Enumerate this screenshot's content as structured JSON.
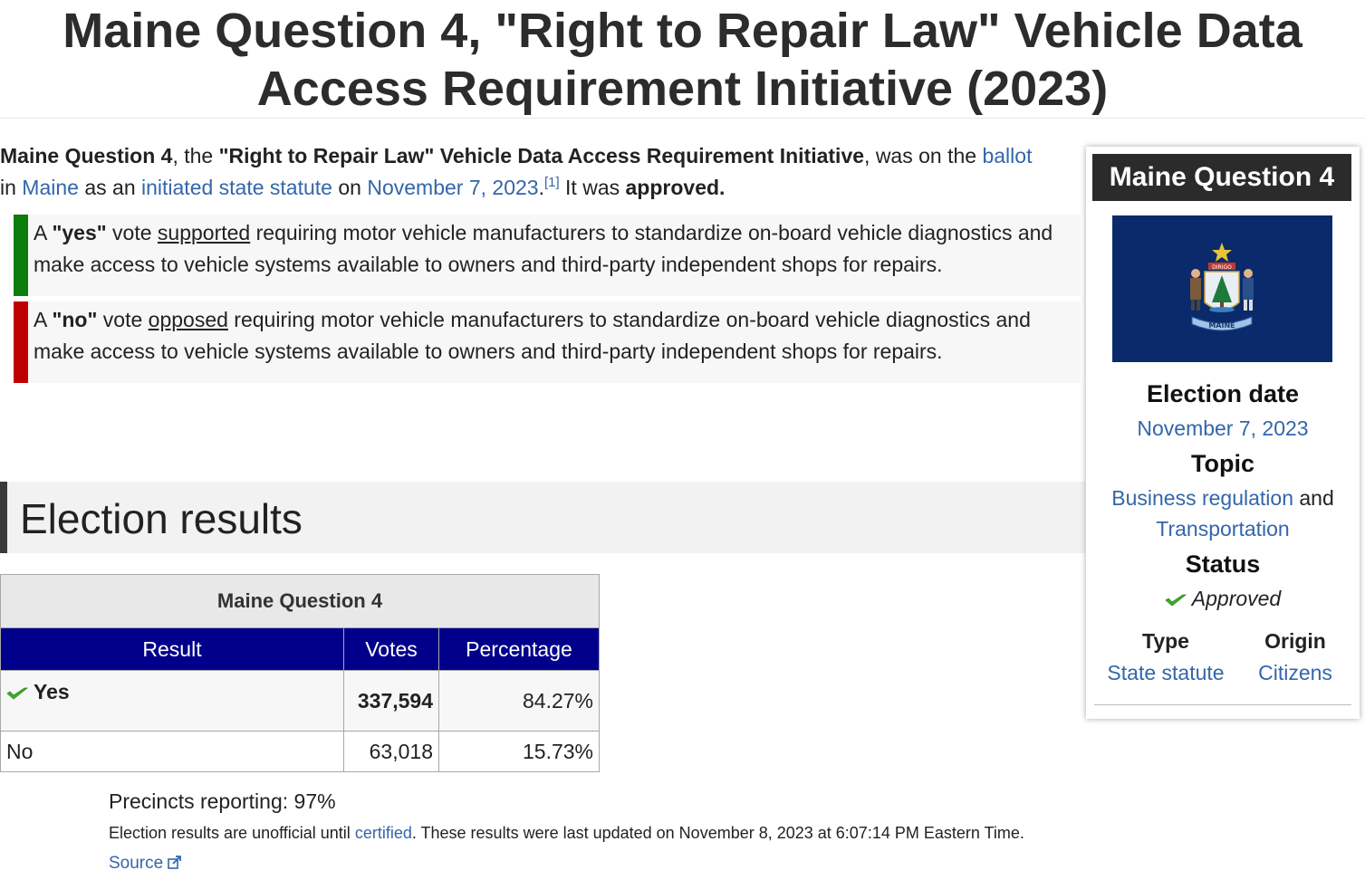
{
  "page": {
    "title_line1": "Maine Question 4, \"Right to Repair Law\" Vehicle Data",
    "title_line2": "Access Requirement Initiative (2023)"
  },
  "intro": {
    "name_bold": "Maine Question 4",
    "t1": ", the ",
    "initiative_bold": "\"Right to Repair Law\" Vehicle Data Access Requirement Initiative",
    "t2": ", was on the ",
    "link_ballot": "ballot",
    "t3": "in ",
    "link_maine": "Maine",
    "t4": " as an ",
    "link_statute": "initiated state statute",
    "t5": " on ",
    "link_date": "November 7, 2023",
    "t6": ".",
    "ref": "[1]",
    "t7": " It was ",
    "approved_bold": "approved."
  },
  "votes": {
    "yes": {
      "a": "A ",
      "bold": "\"yes\"",
      "b": " vote ",
      "u": "supported",
      "c": " requiring motor vehicle manufacturers to standardize on-board vehicle diagnostics and make access to vehicle systems available to owners and third-party independent shops for repairs.",
      "color": "#0a7d0a"
    },
    "no": {
      "a": "A ",
      "bold": "\"no\"",
      "b": " vote ",
      "u": "opposed",
      "c": " requiring motor vehicle manufacturers to standardize on-board vehicle diagnostics and make access to vehicle systems available to owners and third-party independent shops for repairs.",
      "color": "#c00000"
    }
  },
  "section": {
    "heading": "Election results"
  },
  "results": {
    "caption": "Maine Question 4",
    "headers": [
      "Result",
      "Votes",
      "Percentage"
    ],
    "rows": [
      {
        "result": "Yes",
        "votes": "337,594",
        "pct": "84.27%"
      },
      {
        "result": "No",
        "votes": "63,018",
        "pct": "15.73%"
      }
    ],
    "header_color": "#00008b"
  },
  "footer": {
    "precincts": "Precincts reporting: 97%",
    "note_a": "Election results are unofficial until ",
    "note_link": "certified",
    "note_b": ". These results were last updated on November 8, 2023 at 6:07:14 PM Eastern Time.",
    "source": "Source"
  },
  "infobox": {
    "title": "Maine Question 4",
    "election_date_label": "Election date",
    "election_date": "November 7, 2023",
    "topic_label": "Topic",
    "topic_1": "Business regulation",
    "topic_and": " and",
    "topic_2": "Transportation",
    "status_label": "Status",
    "status": "Approved",
    "type_label": "Type",
    "type_value": "State statute",
    "origin_label": "Origin",
    "origin_value": "Citizens",
    "flag_color": "#0b2a6b",
    "flag_banner_text": "DIRIGO",
    "flag_scroll_text": "MAINE"
  },
  "icons": {
    "check": "green-checkmark-icon",
    "external": "external-link-icon"
  }
}
